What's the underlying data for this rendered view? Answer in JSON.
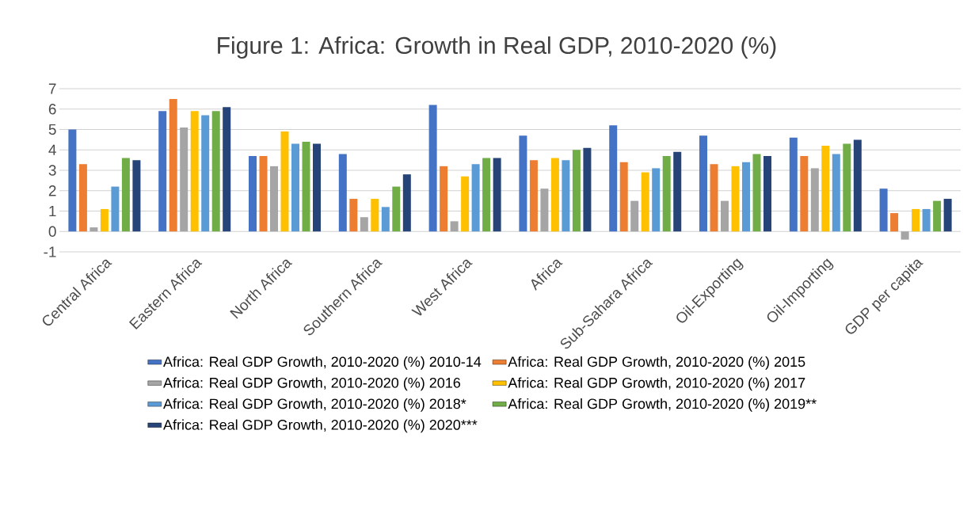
{
  "chart_data": {
    "type": "bar",
    "title": "Figure 1: Africa: Growth in Real GDP, 2010-2020 (%)",
    "categories": [
      "Central Africa",
      "Eastern Africa",
      "North Africa",
      "Southern Africa",
      "West Africa",
      "Africa",
      "Sub-Sahara Africa",
      "Oil-Exporting",
      "Oil-Importing",
      "GDP per capita"
    ],
    "series": [
      {
        "name": "Africa: Real GDP Growth, 2010-2020 (%) 2010-14",
        "color": "#4472c4",
        "values": [
          5.0,
          5.9,
          3.7,
          3.8,
          6.2,
          4.7,
          5.2,
          4.7,
          4.6,
          2.1
        ]
      },
      {
        "name": "Africa: Real GDP Growth, 2010-2020 (%) 2015",
        "color": "#ed7d31",
        "values": [
          3.3,
          6.5,
          3.7,
          1.6,
          3.2,
          3.5,
          3.4,
          3.3,
          3.7,
          0.9
        ]
      },
      {
        "name": "Africa: Real GDP Growth, 2010-2020 (%) 2016",
        "color": "#a5a5a5",
        "values": [
          0.2,
          5.1,
          3.2,
          0.7,
          0.5,
          2.1,
          1.5,
          1.5,
          3.1,
          -0.4
        ]
      },
      {
        "name": "Africa: Real GDP Growth, 2010-2020 (%) 2017",
        "color": "#ffc000",
        "values": [
          1.1,
          5.9,
          4.9,
          1.6,
          2.7,
          3.6,
          2.9,
          3.2,
          4.2,
          1.1
        ]
      },
      {
        "name": "Africa: Real GDP Growth, 2010-2020 (%) 2018*",
        "color": "#5b9bd5",
        "values": [
          2.2,
          5.7,
          4.3,
          1.2,
          3.3,
          3.5,
          3.1,
          3.4,
          3.8,
          1.1
        ]
      },
      {
        "name": "Africa: Real GDP Growth, 2010-2020 (%) 2019**",
        "color": "#70ad47",
        "values": [
          3.6,
          5.9,
          4.4,
          2.2,
          3.6,
          4.0,
          3.7,
          3.8,
          4.3,
          1.5
        ]
      },
      {
        "name": "Africa: Real GDP Growth, 2010-2020 (%) 2020***",
        "color": "#264478",
        "values": [
          3.5,
          6.1,
          4.3,
          2.8,
          3.6,
          4.1,
          3.9,
          3.7,
          4.5,
          1.6
        ]
      }
    ],
    "ylim": [
      -1,
      7
    ],
    "yticks": [
      -1,
      0,
      1,
      2,
      3,
      4,
      5,
      6,
      7
    ],
    "grid": "y",
    "legend": "bottom"
  }
}
